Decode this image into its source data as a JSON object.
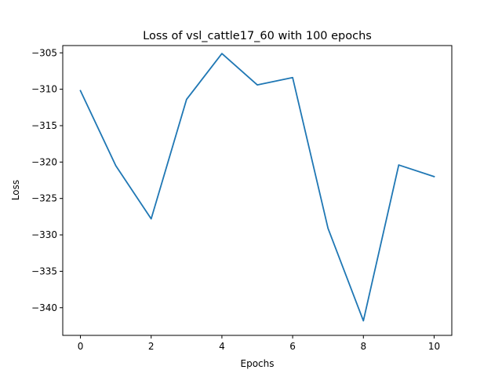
{
  "chart_data": {
    "type": "line",
    "title": "Loss of vsl_cattle17_60 with 100 epochs",
    "xlabel": "Epochs",
    "ylabel": "Loss",
    "xlim": [
      -0.5,
      10.5
    ],
    "ylim": [
      -343.8,
      -304.0
    ],
    "grid": false,
    "x_ticks": [
      0,
      2,
      4,
      6,
      8,
      10
    ],
    "x_tick_labels": [
      "0",
      "2",
      "4",
      "6",
      "8",
      "10"
    ],
    "y_ticks": [
      -305,
      -310,
      -315,
      -320,
      -325,
      -330,
      -335,
      -340
    ],
    "y_tick_labels": [
      "−305",
      "−310",
      "−315",
      "−320",
      "−325",
      "−330",
      "−335",
      "−340"
    ],
    "series": [
      {
        "name": "loss",
        "color": "#1f77b4",
        "x": [
          0,
          1,
          2,
          3,
          4,
          5,
          6,
          7,
          8,
          9,
          10
        ],
        "values": [
          -310.2,
          -320.5,
          -327.8,
          -311.4,
          -305.1,
          -309.4,
          -308.4,
          -329.1,
          -341.8,
          -320.4,
          -322.0
        ]
      }
    ]
  }
}
